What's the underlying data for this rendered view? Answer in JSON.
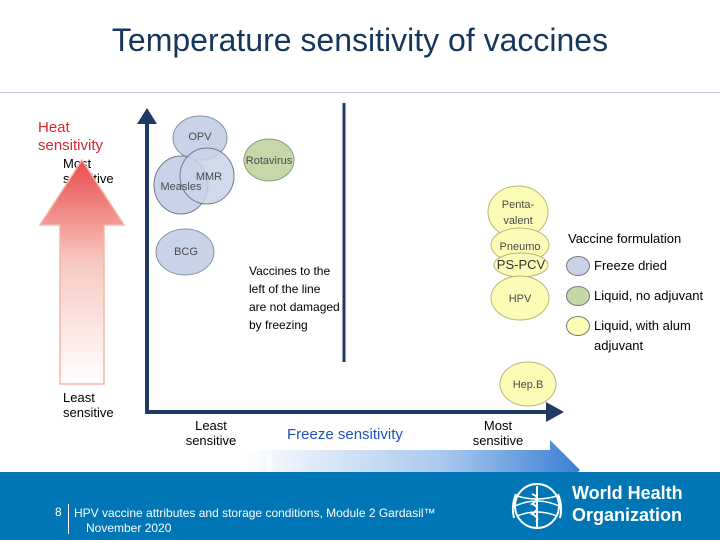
{
  "title": "Temperature sensitivity of vaccines",
  "y_axis": {
    "label_line1": "Heat",
    "label_line2": "sensitivity",
    "top_label_line1": "Most",
    "top_label_line2": "sensitive",
    "bottom_label_line1": "Least",
    "bottom_label_line2": "sensitive"
  },
  "x_axis": {
    "label": "Freeze sensitivity",
    "left_label_line1": "Least",
    "left_label_line2": "sensitive",
    "right_label_line1": "Most",
    "right_label_line2": "sensitive"
  },
  "annotation_lines": [
    "Vaccines to the",
    "left of the line",
    "are not damaged",
    "by freezing"
  ],
  "vaccines": {
    "opv": "OPV",
    "rotavirus": "Rotavirus",
    "mmr": "MMR",
    "measles": "Measles",
    "bcg": "BCG",
    "penta_line1": "Penta-",
    "penta_line2": "valent",
    "pneumo": "Pneumo",
    "pcv": "PS-PCV",
    "hpv": "HPV",
    "hepb": "Hep.B"
  },
  "legend": {
    "title": "Vaccine formulation",
    "items": [
      {
        "label": "Freeze dried",
        "color": "#c9d3e8"
      },
      {
        "label": "Liquid, no adjuvant",
        "color": "#c6d8a7"
      },
      {
        "label_line1": "Liquid, with alum",
        "label_line2": "adjuvant",
        "color": "#fdfcb6"
      }
    ]
  },
  "colors": {
    "freeze_dried": "#c9d3e8",
    "liquid_no_adjuvant": "#c6d8a7",
    "liquid_alum": "#fdfcb6",
    "axis": "#1f3864",
    "heat_arrow_top": "#e94b4b",
    "freeze_arrow": "#3a7fd5",
    "footer": "#0076b6"
  },
  "footer": {
    "page": "8",
    "text": "HPV vaccine attributes and storage conditions,  Module 2  Gardasil™",
    "date": "November 2020",
    "org_line1": "World Health",
    "org_line2": "Organization"
  }
}
